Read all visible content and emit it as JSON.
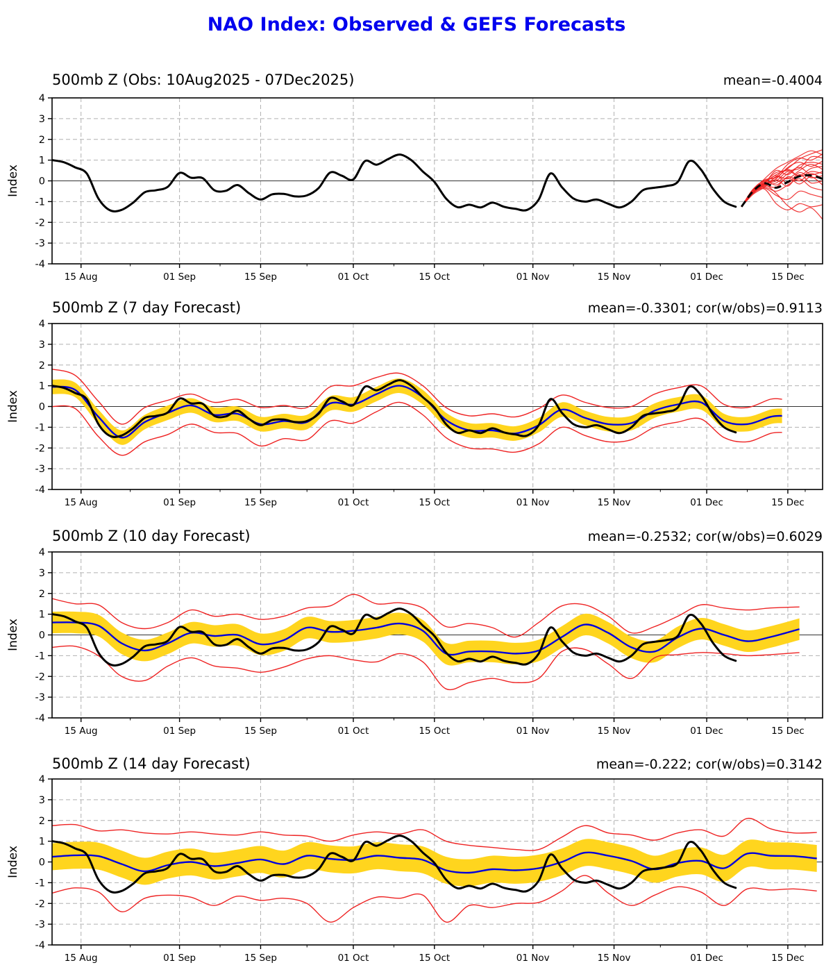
{
  "chart_data": {
    "type": "line",
    "title": "NAO Index: Observed & GEFS Forecasts",
    "colors": {
      "title": "#0000ee",
      "observed": "#000000",
      "forecast_mean": "#0000dd",
      "envelope": "#ee2222",
      "spread_band": "#ffd51e",
      "ensemble_member": "#ee2222",
      "ensemble_mean": "#000000",
      "grid": "#b0b0b0",
      "zero_line": "#333333"
    },
    "x_axis": {
      "start_date": "10Aug2025",
      "end_date": "21Dec2025",
      "day_range": [
        0,
        133
      ],
      "tick_days": [
        5,
        22,
        36,
        52,
        66,
        83,
        97,
        113,
        127
      ],
      "tick_labels": [
        "15 Aug",
        "01 Sep",
        "15 Sep",
        "01 Oct",
        "15 Oct",
        "01 Nov",
        "15 Nov",
        "01 Dec",
        "15 Dec"
      ],
      "minor_tick_days": [
        13.5,
        29,
        44,
        59,
        74.5,
        90,
        105,
        120,
        130
      ]
    },
    "y_axis": {
      "label": "Index",
      "range": [
        -4,
        4
      ],
      "tick_values": [
        4,
        3,
        2,
        1,
        0,
        -1,
        -2,
        -3,
        -4
      ]
    },
    "observed": {
      "note": "NAO index observed 10Aug2025-07Dec2025, sampled every 2 days",
      "start_day": 0,
      "step": 2,
      "values": [
        1.0,
        0.9,
        0.65,
        0.35,
        -0.85,
        -1.42,
        -1.4,
        -1.05,
        -0.55,
        -0.45,
        -0.28,
        0.38,
        0.15,
        0.13,
        -0.45,
        -0.48,
        -0.2,
        -0.6,
        -0.9,
        -0.65,
        -0.63,
        -0.75,
        -0.7,
        -0.35,
        0.4,
        0.25,
        0.07,
        0.95,
        0.78,
        1.05,
        1.27,
        1.0,
        0.45,
        -0.05,
        -0.85,
        -1.27,
        -1.15,
        -1.28,
        -1.05,
        -1.25,
        -1.35,
        -1.4,
        -0.9,
        0.35,
        -0.3,
        -0.85,
        -1.0,
        -0.9,
        -1.1,
        -1.28,
        -1.0,
        -0.45,
        -0.33,
        -0.25,
        -0.05,
        0.95,
        0.55,
        -0.35,
        -1.0,
        -1.25
      ]
    },
    "panels": [
      {
        "title": "500mb Z (Obs: 10Aug2025 - 07Dec2025)",
        "stats": "mean=-0.4004",
        "ensemble": {
          "days": [
            119,
            121,
            123,
            125,
            127,
            129,
            131,
            133
          ],
          "mean": [
            -1.25,
            -0.5,
            -0.12,
            -0.33,
            -0.05,
            0.22,
            0.26,
            0.1
          ],
          "members": [
            [
              -1.25,
              -0.55,
              -0.1,
              0.3,
              0.6,
              1.05,
              1.3,
              1.5
            ],
            [
              -1.25,
              -0.5,
              0.0,
              0.2,
              0.8,
              1.1,
              1.0,
              1.3
            ],
            [
              -1.25,
              -0.45,
              -0.05,
              0.4,
              0.5,
              0.6,
              1.15,
              1.1
            ],
            [
              -1.25,
              -0.6,
              -0.2,
              0.1,
              0.65,
              0.9,
              0.7,
              0.95
            ],
            [
              -1.25,
              -0.4,
              -0.1,
              0.5,
              0.3,
              0.75,
              0.9,
              0.8
            ],
            [
              -1.25,
              -0.5,
              -0.15,
              0.0,
              0.45,
              0.25,
              0.6,
              0.7
            ],
            [
              -1.25,
              -0.65,
              -0.3,
              0.2,
              0.1,
              0.5,
              0.8,
              0.55
            ],
            [
              -1.25,
              -0.55,
              -0.2,
              -0.1,
              0.35,
              0.65,
              0.3,
              0.45
            ],
            [
              -1.25,
              -0.45,
              0.05,
              0.15,
              0.55,
              0.2,
              0.45,
              0.35
            ],
            [
              -1.25,
              -0.5,
              -0.1,
              0.25,
              -0.1,
              0.4,
              0.15,
              0.25
            ],
            [
              -1.25,
              -0.6,
              -0.25,
              -0.3,
              0.2,
              0.0,
              0.35,
              0.1
            ],
            [
              -1.25,
              -0.55,
              -0.15,
              0.05,
              -0.25,
              0.3,
              -0.1,
              0.0
            ],
            [
              -1.25,
              -0.4,
              0.0,
              -0.2,
              0.15,
              -0.15,
              0.2,
              -0.2
            ],
            [
              -1.25,
              -0.5,
              -0.3,
              -0.5,
              -0.2,
              0.1,
              -0.3,
              -0.45
            ],
            [
              -1.25,
              -0.6,
              -0.35,
              -0.7,
              -0.9,
              -0.5,
              -0.65,
              -0.8
            ],
            [
              -1.25,
              -0.55,
              -0.4,
              -1.1,
              -1.4,
              -1.1,
              -1.25,
              -1.15
            ],
            [
              -1.25,
              -0.5,
              -0.2,
              -0.6,
              -1.2,
              -1.5,
              -1.3,
              -1.85
            ],
            [
              -1.25,
              -0.45,
              0.1,
              0.6,
              0.9,
              1.2,
              1.45,
              1.25
            ]
          ]
        }
      },
      {
        "title": "500mb Z (7 day Forecast)",
        "stats": "mean=-0.3301; cor(w/obs)=0.9113",
        "forecast": {
          "days": [
            0,
            4,
            8,
            12,
            16,
            20,
            24,
            28,
            32,
            36,
            40,
            44,
            48,
            52,
            56,
            60,
            64,
            68,
            72,
            76,
            80,
            84,
            88,
            92,
            96,
            100,
            104,
            108,
            112,
            116,
            120,
            124,
            126
          ],
          "mean": [
            0.95,
            0.8,
            -0.5,
            -1.5,
            -0.75,
            -0.3,
            0.05,
            -0.4,
            -0.35,
            -0.85,
            -0.7,
            -0.75,
            0.15,
            0.1,
            0.6,
            1.0,
            0.45,
            -0.65,
            -1.15,
            -1.15,
            -1.3,
            -0.9,
            -0.15,
            -0.55,
            -0.85,
            -0.8,
            -0.2,
            0.1,
            0.2,
            -0.7,
            -0.85,
            -0.5,
            -0.45
          ],
          "band_halfwidth": 0.35,
          "env_upper": [
            1.8,
            1.5,
            0.25,
            -0.85,
            -0.05,
            0.3,
            0.6,
            0.2,
            0.35,
            -0.05,
            0.05,
            -0.05,
            0.95,
            1.0,
            1.4,
            1.6,
            1.0,
            -0.05,
            -0.45,
            -0.35,
            -0.5,
            -0.1,
            0.55,
            0.2,
            -0.05,
            0.0,
            0.6,
            0.9,
            1.0,
            0.1,
            -0.05,
            0.35,
            0.35
          ],
          "env_lower": [
            0.0,
            -0.1,
            -1.45,
            -2.35,
            -1.7,
            -1.35,
            -0.85,
            -1.25,
            -1.3,
            -1.9,
            -1.55,
            -1.6,
            -0.7,
            -0.8,
            -0.25,
            0.2,
            -0.4,
            -1.5,
            -2.0,
            -2.05,
            -2.2,
            -1.8,
            -1.0,
            -1.4,
            -1.7,
            -1.6,
            -1.0,
            -0.75,
            -0.6,
            -1.5,
            -1.7,
            -1.3,
            -1.25
          ]
        }
      },
      {
        "title": "500mb Z (10 day Forecast)",
        "stats": "mean=-0.2532; cor(w/obs)=0.6029",
        "forecast": {
          "days": [
            0,
            4,
            8,
            12,
            16,
            20,
            24,
            28,
            32,
            36,
            40,
            44,
            48,
            52,
            56,
            60,
            64,
            68,
            72,
            76,
            80,
            84,
            88,
            92,
            96,
            100,
            104,
            108,
            112,
            116,
            120,
            124,
            129
          ],
          "mean": [
            0.6,
            0.6,
            0.45,
            -0.4,
            -0.75,
            -0.4,
            0.1,
            -0.05,
            0.0,
            -0.45,
            -0.25,
            0.35,
            0.15,
            0.2,
            0.35,
            0.55,
            0.2,
            -0.9,
            -0.8,
            -0.8,
            -0.9,
            -0.75,
            -0.1,
            0.5,
            0.1,
            -0.6,
            -0.8,
            -0.12,
            0.3,
            0.0,
            -0.3,
            -0.1,
            0.28
          ],
          "band_halfwidth": 0.52,
          "env_upper": [
            1.75,
            1.5,
            1.45,
            0.6,
            0.3,
            0.6,
            1.2,
            0.9,
            1.0,
            0.75,
            0.9,
            1.3,
            1.4,
            1.95,
            1.5,
            1.55,
            1.3,
            0.4,
            0.55,
            0.35,
            -0.1,
            0.6,
            1.4,
            1.45,
            0.9,
            0.1,
            0.4,
            0.9,
            1.45,
            1.3,
            1.2,
            1.3,
            1.35
          ],
          "env_lower": [
            -0.6,
            -0.55,
            -1.0,
            -2.0,
            -2.2,
            -1.5,
            -1.1,
            -1.5,
            -1.6,
            -1.8,
            -1.55,
            -1.15,
            -1.0,
            -1.2,
            -1.3,
            -0.9,
            -1.3,
            -2.6,
            -2.3,
            -2.1,
            -2.3,
            -2.1,
            -0.8,
            -0.7,
            -1.4,
            -2.1,
            -1.1,
            -0.95,
            -0.85,
            -0.9,
            -1.0,
            -0.95,
            -0.85
          ]
        }
      },
      {
        "title": "500mb Z (14 day Forecast)",
        "stats": "mean=-0.222; cor(w/obs)=0.3142",
        "forecast": {
          "days": [
            0,
            4,
            8,
            12,
            16,
            20,
            24,
            28,
            32,
            36,
            40,
            44,
            48,
            52,
            56,
            60,
            64,
            68,
            72,
            76,
            80,
            84,
            88,
            92,
            96,
            100,
            104,
            108,
            112,
            116,
            120,
            124,
            128,
            132
          ],
          "mean": [
            0.25,
            0.32,
            0.28,
            -0.1,
            -0.45,
            -0.15,
            0.0,
            -0.2,
            -0.05,
            0.12,
            -0.1,
            0.3,
            0.15,
            0.1,
            0.3,
            0.2,
            0.1,
            -0.4,
            -0.52,
            -0.35,
            -0.4,
            -0.3,
            0.0,
            0.45,
            0.3,
            0.05,
            -0.35,
            -0.05,
            0.05,
            -0.3,
            0.4,
            0.3,
            0.28,
            0.17
          ],
          "band_halfwidth": 0.65,
          "env_upper": [
            1.75,
            1.8,
            1.5,
            1.55,
            1.4,
            1.35,
            1.45,
            1.35,
            1.3,
            1.45,
            1.3,
            1.25,
            1.0,
            1.3,
            1.45,
            1.35,
            1.55,
            1.0,
            0.8,
            0.7,
            0.6,
            0.6,
            1.2,
            1.75,
            1.4,
            1.3,
            1.05,
            1.4,
            1.55,
            1.25,
            2.1,
            1.6,
            1.4,
            1.42
          ],
          "env_lower": [
            -1.5,
            -1.25,
            -1.45,
            -2.4,
            -1.75,
            -1.6,
            -1.7,
            -2.1,
            -1.65,
            -1.85,
            -1.75,
            -2.0,
            -2.9,
            -2.2,
            -1.7,
            -1.75,
            -1.6,
            -2.9,
            -2.1,
            -2.2,
            -2.0,
            -1.95,
            -1.4,
            -0.65,
            -1.5,
            -2.1,
            -1.6,
            -1.2,
            -1.45,
            -2.1,
            -1.3,
            -1.35,
            -1.3,
            -1.4
          ]
        }
      }
    ]
  }
}
